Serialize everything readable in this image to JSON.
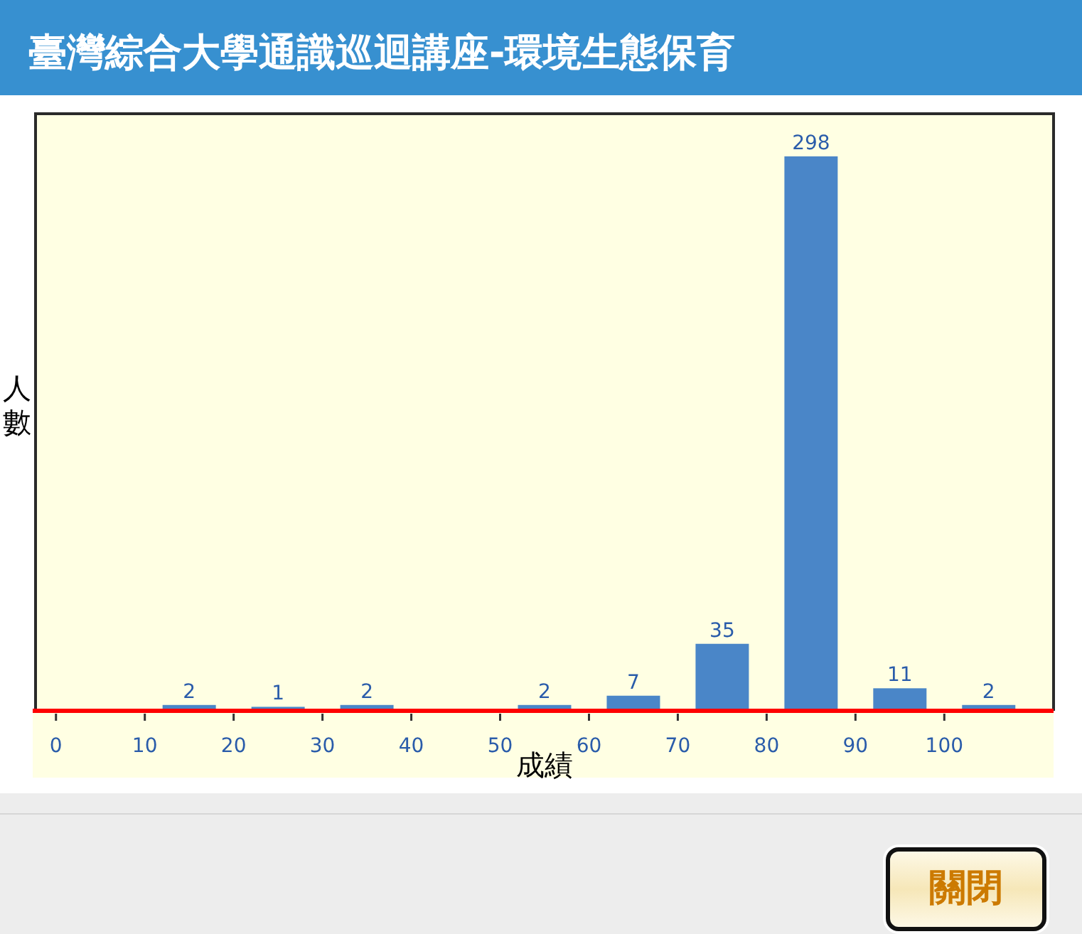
{
  "chart_data": {
    "type": "bar",
    "title": "臺灣綜合大學通識巡迴講座-環境生態保育",
    "xlabel": "成績",
    "ylabel": "人數",
    "x": [
      15,
      25,
      35,
      55,
      65,
      75,
      85,
      95,
      105
    ],
    "values": [
      2,
      1,
      2,
      2,
      7,
      35,
      298,
      11,
      2
    ],
    "color": "#4a86c8",
    "data_labels": true,
    "xlim": [
      -2.3,
      112.3
    ],
    "xticks": [
      0,
      10,
      20,
      30,
      40,
      50,
      60,
      70,
      80,
      90,
      100
    ],
    "annotations": [
      "關閉"
    ]
  }
}
